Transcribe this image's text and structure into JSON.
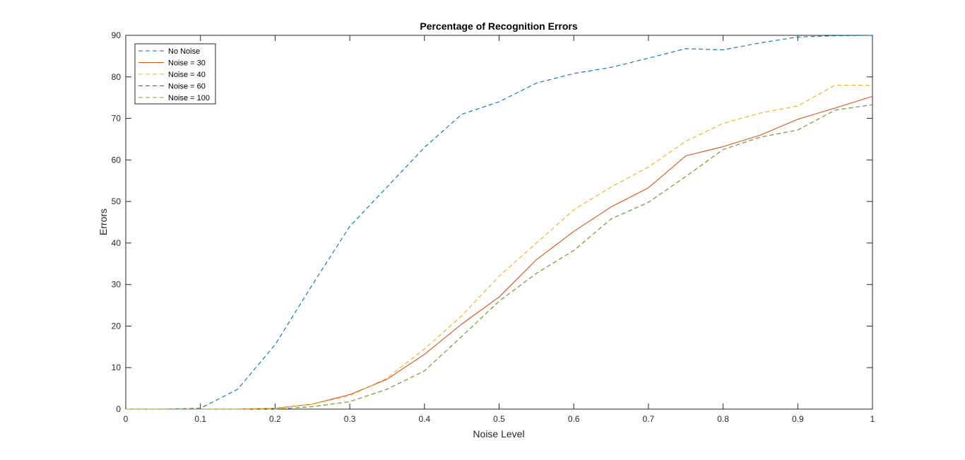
{
  "chart_data": {
    "type": "line",
    "title": "Percentage of Recognition Errors",
    "xlabel": "Noise Level",
    "ylabel": "Errors",
    "xlim": [
      0,
      1
    ],
    "ylim": [
      0,
      90
    ],
    "xticks": [
      "0",
      "0.1",
      "0.2",
      "0.3",
      "0.4",
      "0.5",
      "0.6",
      "0.7",
      "0.8",
      "0.9",
      "1"
    ],
    "yticks": [
      "0",
      "10",
      "20",
      "30",
      "40",
      "50",
      "60",
      "70",
      "80",
      "90"
    ],
    "grid": false,
    "legend_position": "top-left",
    "x": [
      0,
      0.05,
      0.1,
      0.15,
      0.2,
      0.25,
      0.3,
      0.35,
      0.4,
      0.45,
      0.5,
      0.55,
      0.6,
      0.65,
      0.7,
      0.75,
      0.8,
      0.85,
      0.9,
      0.95,
      1.0
    ],
    "series": [
      {
        "name": "No Noise",
        "color": "#0072BD",
        "dash": "dashed",
        "values": [
          0,
          0,
          0.2,
          4.8,
          15.5,
          30,
          44,
          53.5,
          63,
          71,
          74,
          78.5,
          80.8,
          82.3,
          84.5,
          86.8,
          86.5,
          88.2,
          89.6,
          89.9,
          90
        ]
      },
      {
        "name": "Noise = 30",
        "color": "#D95319",
        "dash": "solid",
        "values": [
          0,
          0,
          0,
          0,
          0.2,
          1.2,
          3.5,
          7.2,
          13.2,
          20.5,
          27,
          36,
          42.8,
          48.7,
          53.3,
          61,
          63.2,
          66,
          69.8,
          72.5,
          75.3
        ]
      },
      {
        "name": "Noise = 40",
        "color": "#EDB120",
        "dash": "dashed",
        "values": [
          0,
          0,
          0,
          0,
          0.2,
          1.2,
          3.2,
          7.5,
          14.5,
          22.5,
          32,
          40,
          48,
          53.5,
          58.3,
          64.5,
          68.8,
          71.3,
          73,
          78,
          78
        ]
      },
      {
        "name": "Noise = 60",
        "color": "#7E2F8E",
        "dash": "dashed",
        "values": [
          0,
          0,
          0,
          0,
          0,
          0.6,
          1.8,
          4.8,
          9.2,
          17.5,
          26,
          32.7,
          38.2,
          45.8,
          49.8,
          56,
          62.5,
          65.5,
          67.2,
          72,
          73.3
        ]
      },
      {
        "name": "Noise = 100",
        "color": "#77AC30",
        "dash": "dashed",
        "values": [
          0,
          0,
          0,
          0,
          0,
          0.6,
          1.8,
          4.8,
          9.2,
          17.5,
          26,
          32.7,
          38.2,
          45.8,
          49.8,
          56,
          62.5,
          65.5,
          67.2,
          72,
          73.3
        ]
      }
    ]
  }
}
